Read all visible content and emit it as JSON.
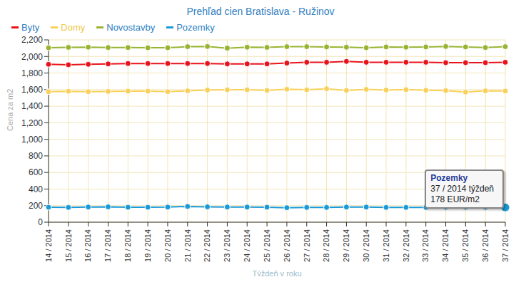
{
  "chart_data": {
    "type": "line",
    "title": "Prehľad cien Bratislava - Ružinov",
    "x_label": "Týždeň v roku",
    "y_label": "Cena za m2",
    "categories": [
      "14 / 2014",
      "15 / 2014",
      "16 / 2014",
      "17 / 2014",
      "18 / 2014",
      "19 / 2014",
      "20 / 2014",
      "21 / 2014",
      "22 / 2014",
      "23 / 2014",
      "24 / 2014",
      "25 / 2014",
      "26 / 2014",
      "27 / 2014",
      "28 / 2014",
      "29 / 2014",
      "30 / 2014",
      "31 / 2014",
      "32 / 2014",
      "33 / 2014",
      "34 / 2014",
      "35 / 2014",
      "36 / 2014",
      "37 / 2014"
    ],
    "series": [
      {
        "name": "Byty",
        "color": "#e8141b",
        "values": [
          1905,
          1900,
          1905,
          1910,
          1915,
          1915,
          1915,
          1915,
          1915,
          1910,
          1910,
          1910,
          1920,
          1930,
          1930,
          1940,
          1930,
          1930,
          1930,
          1930,
          1925,
          1925,
          1925,
          1930
        ]
      },
      {
        "name": "Domy",
        "color": "#f9d15a",
        "values": [
          1575,
          1580,
          1575,
          1578,
          1582,
          1582,
          1575,
          1585,
          1595,
          1598,
          1598,
          1590,
          1605,
          1598,
          1610,
          1590,
          1603,
          1595,
          1600,
          1592,
          1588,
          1570,
          1585,
          1583
        ]
      },
      {
        "name": "Novostavby",
        "color": "#99b433",
        "values": [
          2105,
          2110,
          2112,
          2108,
          2108,
          2105,
          2105,
          2118,
          2120,
          2100,
          2112,
          2110,
          2118,
          2118,
          2115,
          2112,
          2105,
          2115,
          2112,
          2115,
          2120,
          2115,
          2108,
          2118
        ]
      },
      {
        "name": "Pozemky",
        "color": "#1a9ad6",
        "values": [
          180,
          178,
          183,
          185,
          180,
          180,
          182,
          190,
          185,
          183,
          182,
          181,
          175,
          178,
          178,
          182,
          182,
          178,
          178,
          178,
          183,
          183,
          180,
          178
        ]
      }
    ],
    "ylim": [
      0,
      2200
    ],
    "yticks": [
      0,
      200,
      400,
      600,
      800,
      {
        "value": 1000,
        "label": "1,000"
      },
      {
        "value": 1200,
        "label": "1,200"
      },
      {
        "value": 1400,
        "label": "1,400"
      },
      {
        "value": 1600,
        "label": "1,600"
      },
      {
        "value": 1800,
        "label": "1,800"
      },
      {
        "value": 2000,
        "label": "2,000"
      },
      {
        "value": 2200,
        "label": "2,200"
      }
    ],
    "grid": true,
    "marker": "circle",
    "legend": "top-left",
    "annotation": {
      "series": "Pozemky",
      "category": "37 / 2014",
      "text": [
        "Pozemky",
        "37 / 2014 týždeň",
        "178 EUR/m2"
      ]
    }
  }
}
